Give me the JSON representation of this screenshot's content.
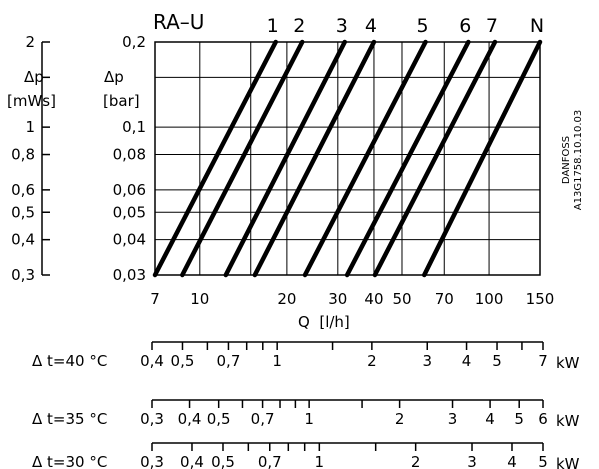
{
  "chart_data": {
    "type": "line",
    "title": "RA–U",
    "xlabel": "Q  [l/h]",
    "x_scale": "log",
    "y_scale": "log",
    "xlim": [
      7,
      150
    ],
    "ylim": [
      0.03,
      0.2
    ],
    "x_ticks": [
      7,
      10,
      20,
      30,
      40,
      50,
      70,
      100,
      150
    ],
    "x_tick_labels": [
      "7",
      "10",
      "20",
      "30",
      "40",
      "50",
      "70",
      "100",
      "150"
    ],
    "y_ticks": [
      0.03,
      0.04,
      0.05,
      0.06,
      0.08,
      0.1,
      0.2
    ],
    "y_tick_labels": [
      "0,03",
      "0,04",
      "0,05",
      "0,06",
      "0,08",
      "0,1",
      "0,2"
    ],
    "y_label_lines": [
      "Δp",
      "[bar]"
    ],
    "y2_ticks": [
      0.3,
      0.4,
      0.5,
      0.6,
      0.8,
      1,
      2
    ],
    "y2_tick_labels": [
      "0,3",
      "0,4",
      "0,5",
      "0,6",
      "0,8",
      "1",
      "2"
    ],
    "y2_label_lines": [
      "Δp",
      "[mWs]"
    ],
    "grid": true,
    "series": [
      {
        "name": "1",
        "x": [
          7,
          18.3
        ],
        "y": [
          0.03,
          0.2
        ]
      },
      {
        "name": "2",
        "x": [
          8.7,
          22.6
        ],
        "y": [
          0.03,
          0.2
        ]
      },
      {
        "name": "3",
        "x": [
          12.3,
          31.7
        ],
        "y": [
          0.03,
          0.2
        ]
      },
      {
        "name": "4",
        "x": [
          15.5,
          40
        ],
        "y": [
          0.03,
          0.2
        ]
      },
      {
        "name": "5",
        "x": [
          23.1,
          60.3
        ],
        "y": [
          0.03,
          0.2
        ]
      },
      {
        "name": "6",
        "x": [
          32.3,
          84.8
        ],
        "y": [
          0.03,
          0.2
        ]
      },
      {
        "name": "7",
        "x": [
          40.3,
          104.8
        ],
        "y": [
          0.03,
          0.2
        ]
      },
      {
        "name": "N",
        "x": [
          59.7,
          150
        ],
        "y": [
          0.03,
          0.2
        ]
      }
    ],
    "side_text": [
      "DANFOSS",
      "A13G1758.10.10.03"
    ],
    "power_scales": [
      {
        "label": "Δ t=40 °C",
        "unit": "kW",
        "values": [
          0.4,
          0.5,
          0.7,
          1,
          2,
          3,
          4,
          5,
          7
        ],
        "labels": [
          "0,4",
          "0,5",
          "0,7",
          "1",
          "2",
          "3",
          "4",
          "5",
          "7"
        ],
        "minor": [
          0.6,
          0.8,
          0.9,
          1.5,
          6
        ]
      },
      {
        "label": "Δ t=35 °C",
        "unit": "kW",
        "values": [
          0.3,
          0.4,
          0.5,
          0.7,
          1,
          2,
          3,
          4,
          5,
          6
        ],
        "labels": [
          "0,3",
          "0,4",
          "0,5",
          "0,7",
          "1",
          "2",
          "3",
          "4",
          "5",
          "6"
        ],
        "minor": [
          0.6,
          0.8,
          0.9,
          1.5
        ]
      },
      {
        "label": "Δ t=30 °C",
        "unit": "kW",
        "values": [
          0.3,
          0.4,
          0.5,
          0.7,
          1,
          2,
          3,
          4,
          5
        ],
        "labels": [
          "0,3",
          "0,4",
          "0,5",
          "0,7",
          "1",
          "2",
          "3",
          "4",
          "5"
        ],
        "minor": [
          0.6,
          0.8,
          0.9,
          1.5
        ]
      }
    ]
  }
}
